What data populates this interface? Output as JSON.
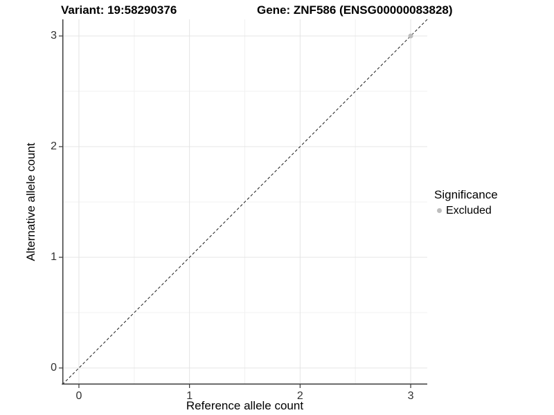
{
  "chart_data": {
    "type": "scatter",
    "title_left": "Variant: 19:58290376",
    "title_right": "Gene: ZNF586 (ENSG00000083828)",
    "xlabel": "Reference allele count",
    "ylabel": "Alternative allele count",
    "xlim": [
      -0.15,
      3.15
    ],
    "ylim": [
      -0.15,
      3.15
    ],
    "x_ticks": [
      0,
      1,
      2,
      3
    ],
    "y_ticks": [
      0,
      1,
      2,
      3
    ],
    "x_minor_ticks": [
      0.5,
      1.5,
      2.5
    ],
    "y_minor_ticks": [
      0.5,
      1.5,
      2.5
    ],
    "grid": true,
    "points": [
      {
        "x": 3,
        "y": 3,
        "series": "Excluded"
      }
    ],
    "reference_line": {
      "type": "identity",
      "from": [
        -0.15,
        -0.15
      ],
      "to": [
        3.15,
        3.15
      ],
      "style": "dashed",
      "color": "#1a1a1a"
    },
    "legend": {
      "title": "Significance",
      "position": "right",
      "items": [
        {
          "label": "Excluded",
          "color": "#bdbdbd"
        }
      ]
    }
  },
  "colors": {
    "background": "#ffffff",
    "grid_major": "#e4e4e4",
    "grid_minor": "#f1f1f1",
    "axis_line": "#3c3c3c",
    "tick_mark": "#333333",
    "tick_label": "#303030",
    "point_excluded": "#bdbdbd",
    "title_text": "#000000"
  }
}
